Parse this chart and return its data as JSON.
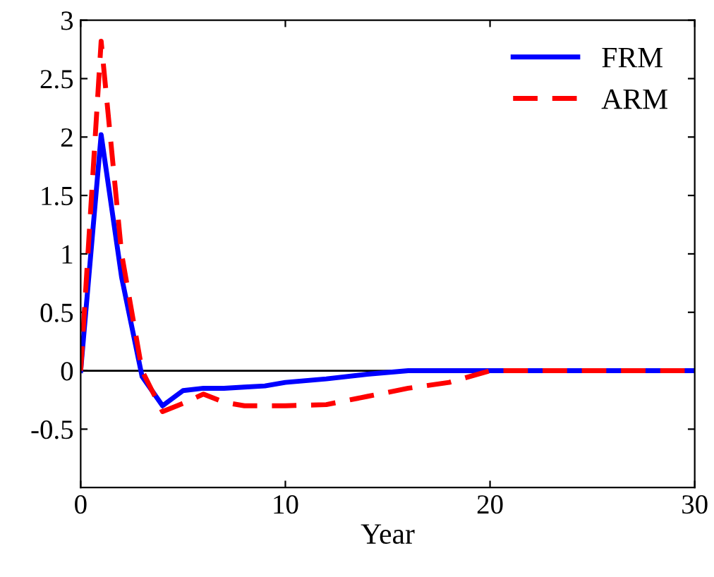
{
  "chart_data": {
    "type": "line",
    "xlabel": "Year",
    "xlim": [
      0,
      30
    ],
    "xticks": [
      0,
      10,
      20,
      30
    ],
    "ylim": [
      -1,
      3
    ],
    "yticks": [
      -0.5,
      0,
      0.5,
      1,
      1.5,
      2,
      2.5,
      3
    ],
    "grid": false,
    "legend": "top right",
    "ref_lines": [
      {
        "axis": "y",
        "value": 0,
        "color": "#000000",
        "line_style": "solid"
      }
    ],
    "series": [
      {
        "name": "FRM",
        "color": "#0000ff",
        "line_style": "solid",
        "x": [
          0,
          1,
          2,
          3,
          4,
          5,
          6,
          7,
          8,
          9,
          10,
          12,
          14,
          16,
          20,
          30
        ],
        "values": [
          0,
          2.02,
          0.8,
          -0.05,
          -0.3,
          -0.17,
          -0.15,
          -0.15,
          -0.14,
          -0.13,
          -0.1,
          -0.07,
          -0.03,
          0,
          0,
          0
        ]
      },
      {
        "name": "ARM",
        "color": "#ff0000",
        "line_style": "dashed",
        "x": [
          0,
          1,
          2,
          3,
          4,
          5,
          6,
          7,
          8,
          10,
          12,
          14,
          16,
          18,
          20,
          30
        ],
        "values": [
          0,
          2.82,
          1.0,
          0,
          -0.35,
          -0.28,
          -0.2,
          -0.27,
          -0.3,
          -0.3,
          -0.29,
          -0.22,
          -0.15,
          -0.1,
          0,
          0
        ]
      }
    ]
  }
}
